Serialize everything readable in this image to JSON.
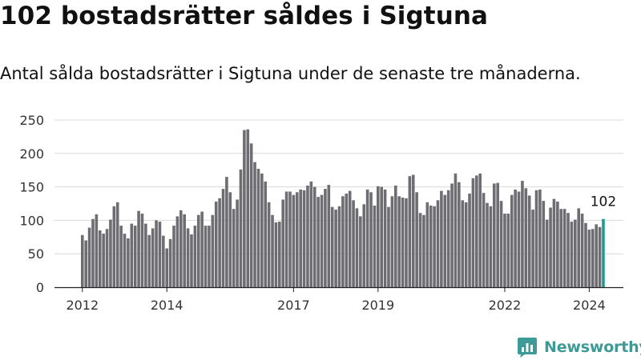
{
  "header": {
    "title": "102 bostadsrätter såldes i Sigtuna",
    "subtitle": "Antal sålda bostadsrätter i Sigtuna under de senaste tre månaderna."
  },
  "brand": {
    "name": "Newsworthy",
    "icon": "newsworthy-logo-icon"
  },
  "colors": {
    "bar": "#6e6d72",
    "highlight": "#1f9c8d",
    "grid": "#d9d9d9",
    "axis": "#222222",
    "brand": "#3e9a96"
  },
  "chart_data": {
    "type": "bar",
    "title": "102 bostadsrätter såldes i Sigtuna",
    "subtitle": "Antal sålda bostadsrätter i Sigtuna under de senaste tre månaderna.",
    "xlabel": "",
    "ylabel": "",
    "ylim": [
      0,
      250
    ],
    "yticks": [
      0,
      50,
      100,
      150,
      200,
      250
    ],
    "xtick_labels": [
      "2012",
      "2014",
      "2017",
      "2019",
      "2022",
      "2024"
    ],
    "x_range": [
      "2012-01",
      "2024-05"
    ],
    "grid": true,
    "legend": "none",
    "highlight_last": true,
    "last_value_label": "102",
    "categories": [
      "2012-01",
      "2012-02",
      "2012-03",
      "2012-04",
      "2012-05",
      "2012-06",
      "2012-07",
      "2012-08",
      "2012-09",
      "2012-10",
      "2012-11",
      "2012-12",
      "2013-01",
      "2013-02",
      "2013-03",
      "2013-04",
      "2013-05",
      "2013-06",
      "2013-07",
      "2013-08",
      "2013-09",
      "2013-10",
      "2013-11",
      "2013-12",
      "2014-01",
      "2014-02",
      "2014-03",
      "2014-04",
      "2014-05",
      "2014-06",
      "2014-07",
      "2014-08",
      "2014-09",
      "2014-10",
      "2014-11",
      "2014-12",
      "2015-01",
      "2015-02",
      "2015-03",
      "2015-04",
      "2015-05",
      "2015-06",
      "2015-07",
      "2015-08",
      "2015-09",
      "2015-10",
      "2015-11",
      "2015-12",
      "2016-01",
      "2016-02",
      "2016-03",
      "2016-04",
      "2016-05",
      "2016-06",
      "2016-07",
      "2016-08",
      "2016-09",
      "2016-10",
      "2016-11",
      "2016-12",
      "2017-01",
      "2017-02",
      "2017-03",
      "2017-04",
      "2017-05",
      "2017-06",
      "2017-07",
      "2017-08",
      "2017-09",
      "2017-10",
      "2017-11",
      "2017-12",
      "2018-01",
      "2018-02",
      "2018-03",
      "2018-04",
      "2018-05",
      "2018-06",
      "2018-07",
      "2018-08",
      "2018-09",
      "2018-10",
      "2018-11",
      "2018-12",
      "2019-01",
      "2019-02",
      "2019-03",
      "2019-04",
      "2019-05",
      "2019-06",
      "2019-07",
      "2019-08",
      "2019-09",
      "2019-10",
      "2019-11",
      "2019-12",
      "2020-01",
      "2020-02",
      "2020-03",
      "2020-04",
      "2020-05",
      "2020-06",
      "2020-07",
      "2020-08",
      "2020-09",
      "2020-10",
      "2020-11",
      "2020-12",
      "2021-01",
      "2021-02",
      "2021-03",
      "2021-04",
      "2021-05",
      "2021-06",
      "2021-07",
      "2021-08",
      "2021-09",
      "2021-10",
      "2021-11",
      "2021-12",
      "2022-01",
      "2022-02",
      "2022-03",
      "2022-04",
      "2022-05",
      "2022-06",
      "2022-07",
      "2022-08",
      "2022-09",
      "2022-10",
      "2022-11",
      "2022-12",
      "2023-01",
      "2023-02",
      "2023-03",
      "2023-04",
      "2023-05",
      "2023-06",
      "2023-07",
      "2023-08",
      "2023-09",
      "2023-10",
      "2023-11",
      "2023-12",
      "2024-01",
      "2024-02",
      "2024-03",
      "2024-04",
      "2024-05"
    ],
    "values": [
      78,
      70,
      89,
      102,
      109,
      85,
      80,
      87,
      101,
      121,
      127,
      92,
      80,
      73,
      95,
      92,
      114,
      110,
      95,
      78,
      88,
      100,
      98,
      77,
      58,
      72,
      92,
      106,
      115,
      109,
      88,
      79,
      92,
      108,
      113,
      92,
      92,
      108,
      128,
      133,
      147,
      165,
      142,
      117,
      131,
      176,
      235,
      236,
      215,
      187,
      177,
      170,
      158,
      127,
      108,
      97,
      98,
      131,
      143,
      143,
      138,
      142,
      146,
      145,
      152,
      158,
      150,
      135,
      138,
      147,
      153,
      120,
      116,
      121,
      136,
      140,
      144,
      130,
      118,
      106,
      124,
      146,
      142,
      122,
      151,
      150,
      146,
      120,
      136,
      152,
      136,
      134,
      133,
      166,
      168,
      142,
      111,
      108,
      127,
      122,
      121,
      130,
      144,
      138,
      145,
      155,
      170,
      157,
      130,
      127,
      140,
      163,
      167,
      170,
      141,
      126,
      121,
      155,
      156,
      129,
      110,
      110,
      138,
      146,
      143,
      159,
      148,
      137,
      116,
      145,
      146,
      129,
      101,
      119,
      132,
      128,
      117,
      117,
      111,
      98,
      101,
      118,
      110,
      96,
      86,
      87,
      94,
      90,
      102
    ]
  }
}
